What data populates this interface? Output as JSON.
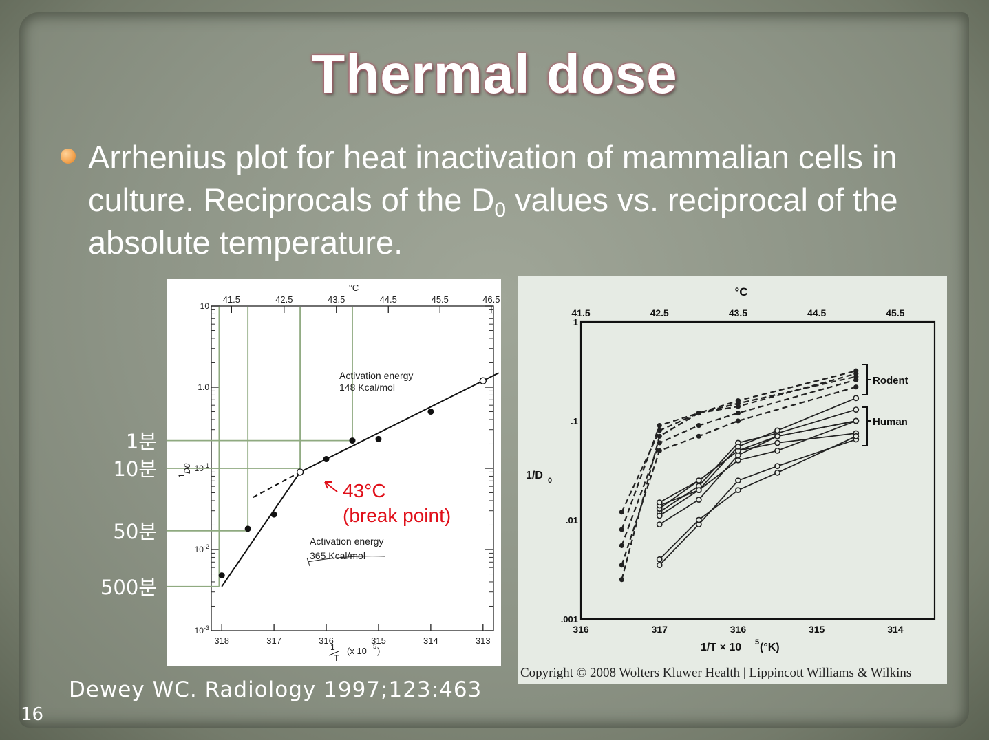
{
  "slide": {
    "title": "Thermal dose",
    "bullet_part1": "Arrhenius plot for heat inactivation of mammalian cells in culture. Reciprocals of the D",
    "bullet_sub": "0",
    "bullet_part2": " values vs. reciprocal of the absolute temperature.",
    "citation": "Dewey WC. Radiology 1997;123:463",
    "slide_number": "16",
    "bullet_color": "#f2a24e",
    "annotation_color": "#e0101a",
    "guide_line_color": "#8faa80"
  },
  "side_labels": [
    {
      "text": "1분",
      "y_value": 0.22
    },
    {
      "text": "10분",
      "y_value": 0.1
    },
    {
      "text": "50분",
      "y_value": 0.017
    },
    {
      "text": "500분",
      "y_value": 0.0035
    }
  ],
  "chart_data": [
    {
      "type": "scatter",
      "x_axis_label_main": "1",
      "x_axis_label_denom": "T",
      "x_axis_label_suffix": "(x 10",
      "x_axis_label_exp": "5",
      "x_axis_label_close": ")",
      "ylabel_num": "1",
      "ylabel_den": "D0",
      "top_axis_label": "°C",
      "x_ticks": [
        "318",
        "317",
        "316",
        "315",
        "314",
        "313"
      ],
      "top_ticks": [
        "41.5",
        "42.5",
        "43.5",
        "44.5",
        "45.5",
        "46.5"
      ],
      "y_ticks": [
        "10",
        "1.0",
        "10-1",
        "10-2",
        "10-3"
      ],
      "y_scale": "log",
      "ylim": [
        0.001,
        10
      ],
      "xlim": [
        318.2,
        312.8
      ],
      "x_axis_reversed": true,
      "points_filled": [
        {
          "x": 318.0,
          "y": 0.0048
        },
        {
          "x": 317.5,
          "y": 0.018
        },
        {
          "x": 317.0,
          "y": 0.027
        },
        {
          "x": 316.0,
          "y": 0.13
        },
        {
          "x": 315.5,
          "y": 0.22
        },
        {
          "x": 315.0,
          "y": 0.23
        },
        {
          "x": 314.0,
          "y": 0.5
        }
      ],
      "points_open": [
        {
          "x": 316.5,
          "y": 0.09
        },
        {
          "x": 313.0,
          "y": 1.2
        }
      ],
      "fit_lines": [
        {
          "name": "low",
          "from": {
            "x": 318.0,
            "y": 0.0035
          },
          "to": {
            "x": 316.5,
            "y": 0.09
          }
        },
        {
          "name": "high",
          "from": {
            "x": 316.5,
            "y": 0.09
          },
          "to": {
            "x": 312.7,
            "y": 1.5
          }
        },
        {
          "name": "extrapolation",
          "dashed": true,
          "from": {
            "x": 317.4,
            "y": 0.044
          },
          "to": {
            "x": 316.5,
            "y": 0.09
          }
        }
      ],
      "annotations": {
        "activation_high": [
          "Activation energy",
          "148 Kcal/mol"
        ],
        "activation_low": [
          "Activation energy",
          "365 Kcal/mol"
        ],
        "break_point": [
          "43°C",
          "(break point)"
        ]
      }
    },
    {
      "type": "line",
      "top_axis_label": "°C",
      "top_ticks": [
        "41.5",
        "42.5",
        "43.5",
        "44.5",
        "45.5"
      ],
      "x_ticks": [
        "316",
        "317",
        "316",
        "315",
        "314"
      ],
      "y_ticks": [
        "1",
        ".1",
        ".01",
        ".001"
      ],
      "ylabel": "1/D",
      "ylabel_sub": "0",
      "xlabel": "1/T × 10",
      "xlabel_exp": "5",
      "xlabel_unit": "(°K)",
      "y_scale": "log",
      "ylim": [
        0.001,
        1
      ],
      "legend": [
        "Rodent",
        "Human"
      ],
      "copyright": "Copyright © 2008 Wolters Kluwer Health | Lippincott Williams & Wilkins",
      "x_positions": [
        0.52,
        1.0,
        1.5,
        2.0,
        2.5,
        3.5
      ],
      "series_rodent": [
        {
          "values": [
            0.008,
            0.09,
            0.12,
            0.14,
            null,
            0.3
          ]
        },
        {
          "values": [
            0.0055,
            0.06,
            0.09,
            0.12,
            null,
            0.26
          ]
        },
        {
          "values": [
            0.0035,
            0.05,
            0.07,
            0.1,
            null,
            0.22
          ]
        },
        {
          "values": [
            0.0025,
            0.07,
            0.12,
            0.16,
            null,
            0.32
          ]
        },
        {
          "values": [
            0.012,
            0.08,
            0.12,
            0.15,
            null,
            0.28
          ]
        }
      ],
      "series_human": [
        {
          "values": [
            null,
            0.009,
            0.016,
            0.045,
            0.07,
            0.1
          ]
        },
        {
          "values": [
            null,
            0.012,
            0.022,
            0.06,
            0.075,
            0.13
          ]
        },
        {
          "values": [
            null,
            0.013,
            0.025,
            0.05,
            0.07,
            0.1
          ]
        },
        {
          "values": [
            null,
            0.014,
            0.02,
            0.04,
            0.05,
            0.1
          ]
        },
        {
          "values": [
            null,
            0.015,
            0.025,
            0.05,
            0.06,
            0.075
          ]
        },
        {
          "values": [
            null,
            0.0035,
            0.009,
            0.025,
            0.035,
            0.065
          ]
        },
        {
          "values": [
            null,
            0.004,
            0.01,
            0.02,
            0.03,
            0.07
          ]
        },
        {
          "values": [
            null,
            0.011,
            0.02,
            0.055,
            0.08,
            0.17
          ]
        }
      ]
    }
  ]
}
